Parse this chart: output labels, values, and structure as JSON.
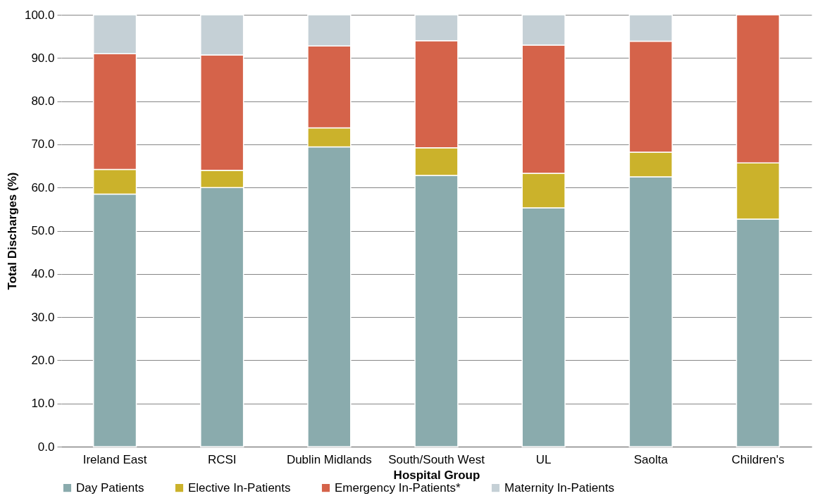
{
  "chart_data": {
    "type": "bar",
    "stacked": true,
    "xlabel": "Hospital Group",
    "ylabel": "Total Discharges (%)",
    "categories": [
      "Ireland East",
      "RCSI",
      "Dublin Midlands",
      "South/South West",
      "UL",
      "Saolta",
      "Children's"
    ],
    "series": [
      {
        "name": "Day Patients",
        "color": "#8aabad",
        "values": [
          58.5,
          60.0,
          69.4,
          62.8,
          55.3,
          62.5,
          52.7
        ]
      },
      {
        "name": "Elective In-Patients",
        "color": "#cbb22b",
        "values": [
          5.7,
          4.0,
          4.4,
          6.4,
          8.0,
          5.7,
          13.0
        ]
      },
      {
        "name": "Emergency In-Patients*",
        "color": "#d5634a",
        "values": [
          26.8,
          26.7,
          19.0,
          24.8,
          29.7,
          25.7,
          34.3
        ]
      },
      {
        "name": "Maternity In-Patients",
        "color": "#c5d0d6",
        "values": [
          9.0,
          9.3,
          7.2,
          6.0,
          7.0,
          6.1,
          null
        ]
      }
    ],
    "ylim": [
      0,
      100
    ],
    "yticks": [
      {
        "value": 0,
        "label": "0.0"
      },
      {
        "value": 10,
        "label": "10.0"
      },
      {
        "value": 20,
        "label": "20.0"
      },
      {
        "value": 30,
        "label": "30.0"
      },
      {
        "value": 40,
        "label": "40.0"
      },
      {
        "value": 50,
        "label": "50.0"
      },
      {
        "value": 60,
        "label": "60.0"
      },
      {
        "value": 70,
        "label": "70.0"
      },
      {
        "value": 80,
        "label": "80.0"
      },
      {
        "value": 90,
        "label": "90.0"
      },
      {
        "value": 100,
        "label": "100.0"
      }
    ],
    "grid": "y",
    "legend": "bottom"
  }
}
